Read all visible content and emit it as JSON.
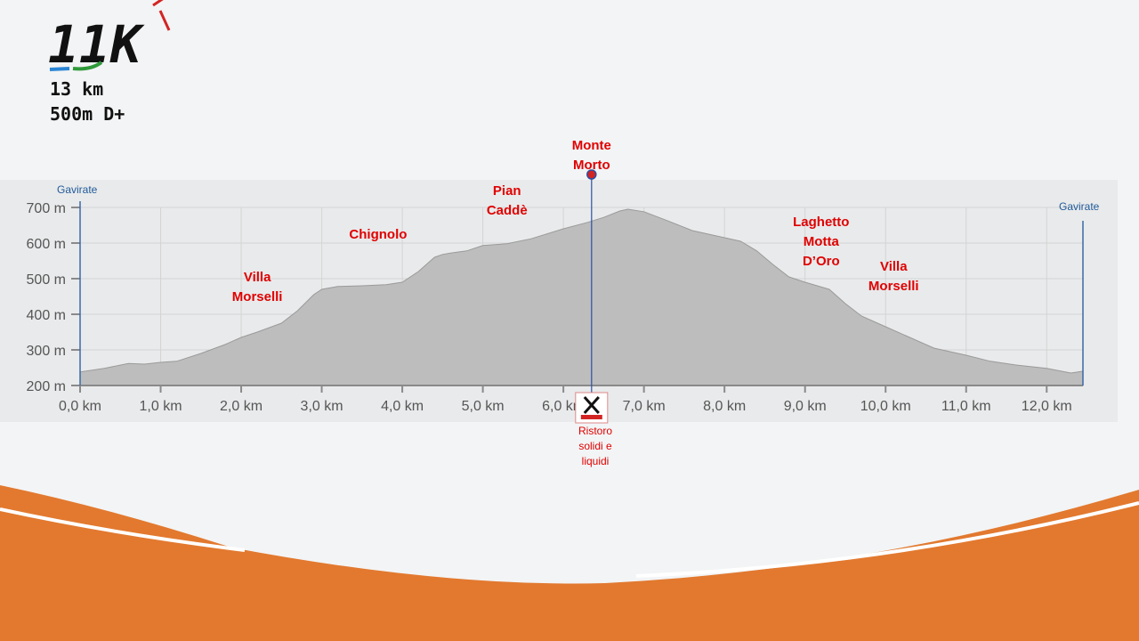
{
  "header": {
    "logo_text": "11K",
    "distance": "13 km",
    "elevation_gain": "500m D+"
  },
  "chart_data": {
    "type": "area",
    "title": "",
    "xlabel": "",
    "ylabel": "",
    "xlim": [
      0,
      12.45
    ],
    "ylim": [
      200,
      700
    ],
    "x_ticks": [
      0,
      1,
      2,
      3,
      4,
      5,
      6,
      7,
      8,
      9,
      10,
      11,
      12
    ],
    "x_tick_labels": [
      "0,0 km",
      "1,0 km",
      "2,0 km",
      "3,0 km",
      "4,0 km",
      "5,0 km",
      "6,0 km",
      "7,0 km",
      "8,0 km",
      "9,0 km",
      "10,0 km",
      "11,0 km",
      "12,0 km"
    ],
    "y_ticks": [
      200,
      300,
      400,
      500,
      600,
      700
    ],
    "y_tick_labels": [
      "200 m",
      "300 m",
      "400 m",
      "500 m",
      "600 m",
      "700 m"
    ],
    "grid": true,
    "fill_color": "#bdbdbd",
    "series": [
      {
        "x": [
          0,
          0.3,
          0.6,
          0.8,
          1.0,
          1.2,
          1.5,
          1.8,
          2.0,
          2.2,
          2.5,
          2.7,
          2.9,
          3.0,
          3.2,
          3.5,
          3.8,
          4.0,
          4.2,
          4.4,
          4.5,
          4.6,
          4.8,
          5.0,
          5.3,
          5.6,
          6.0,
          6.3,
          6.5,
          6.7,
          6.8,
          7.0,
          7.3,
          7.6,
          8.0,
          8.2,
          8.4,
          8.6,
          8.8,
          9.0,
          9.3,
          9.5,
          9.7,
          10.0,
          10.3,
          10.6,
          11.0,
          11.3,
          11.6,
          12.0,
          12.3,
          12.45
        ],
        "y": [
          238,
          248,
          262,
          260,
          265,
          268,
          290,
          315,
          335,
          350,
          375,
          410,
          455,
          470,
          478,
          480,
          483,
          490,
          520,
          560,
          568,
          572,
          578,
          593,
          598,
          612,
          640,
          658,
          672,
          690,
          695,
          688,
          662,
          635,
          615,
          605,
          578,
          540,
          505,
          490,
          470,
          430,
          395,
          365,
          335,
          305,
          285,
          268,
          258,
          248,
          235,
          240
        ]
      }
    ],
    "towns": [
      {
        "name": "Gavirate",
        "x": 0
      },
      {
        "name": "Gavirate",
        "x": 12.45
      }
    ],
    "annotations": [
      {
        "label": "Villa\nMorselli",
        "x": 2.2
      },
      {
        "label": "Chignolo",
        "x": 3.7
      },
      {
        "label": "Pian\nCaddè",
        "x": 5.3
      },
      {
        "label": "Monte\nMorto",
        "x": 6.35
      },
      {
        "label": "Laghetto\nMotta\nD’Oro",
        "x": 9.2
      },
      {
        "label": "Villa\nMorselli",
        "x": 10.1
      }
    ],
    "aid_station": {
      "label": "Ristoro\nsolidi e\nliquidi",
      "x": 6.35
    }
  },
  "colors": {
    "accent": "#e2792f",
    "annotation": "#e00000",
    "town": "#1f5a9a",
    "profile": "#bdbdbd"
  }
}
